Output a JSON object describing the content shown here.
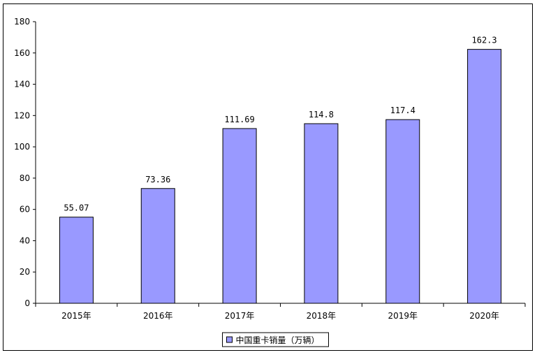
{
  "chart_data": {
    "type": "bar",
    "categories": [
      "2015年",
      "2016年",
      "2017年",
      "2018年",
      "2019年",
      "2020年"
    ],
    "series": [
      {
        "name": "中国重卡销量（万辆）",
        "values": [
          55.07,
          73.36,
          111.69,
          114.8,
          117.4,
          162.3
        ]
      }
    ],
    "data_labels": [
      "55.07",
      "73.36",
      "111.69",
      "114.8",
      "117.4",
      "162.3"
    ],
    "ylim": [
      0,
      180
    ],
    "yticks": [
      0,
      20,
      40,
      60,
      80,
      100,
      120,
      140,
      160,
      180
    ],
    "grid": false,
    "legend_position": "bottom",
    "colors": {
      "bar": "#9999ff",
      "bar_stroke": "#000000"
    }
  }
}
